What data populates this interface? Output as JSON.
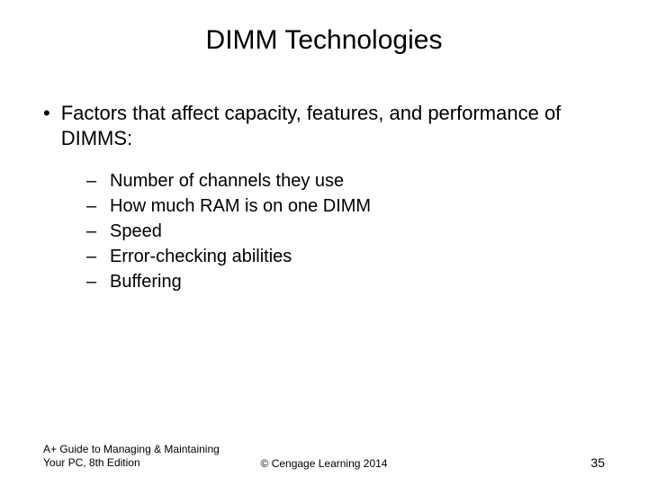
{
  "slide": {
    "title": "DIMM Technologies",
    "mainBullet": "Factors that affect capacity, features, and performance of DIMMS:",
    "subBullets": [
      "Number of channels they use",
      "How much RAM is on one DIMM",
      "Speed",
      "Error-checking abilities",
      "Buffering"
    ],
    "footer": {
      "bookTitle": "A+ Guide to Managing & Maintaining Your PC, 8th Edition",
      "copyright": "© Cengage Learning  2014",
      "pageNumber": "35"
    },
    "styling": {
      "background_color": "#ffffff",
      "text_color": "#000000",
      "title_fontsize": 30,
      "body_fontsize": 22,
      "sub_fontsize": 20,
      "footer_fontsize": 12,
      "font_family": "Arial",
      "bullet_marker": "•",
      "sub_marker": "–"
    }
  }
}
